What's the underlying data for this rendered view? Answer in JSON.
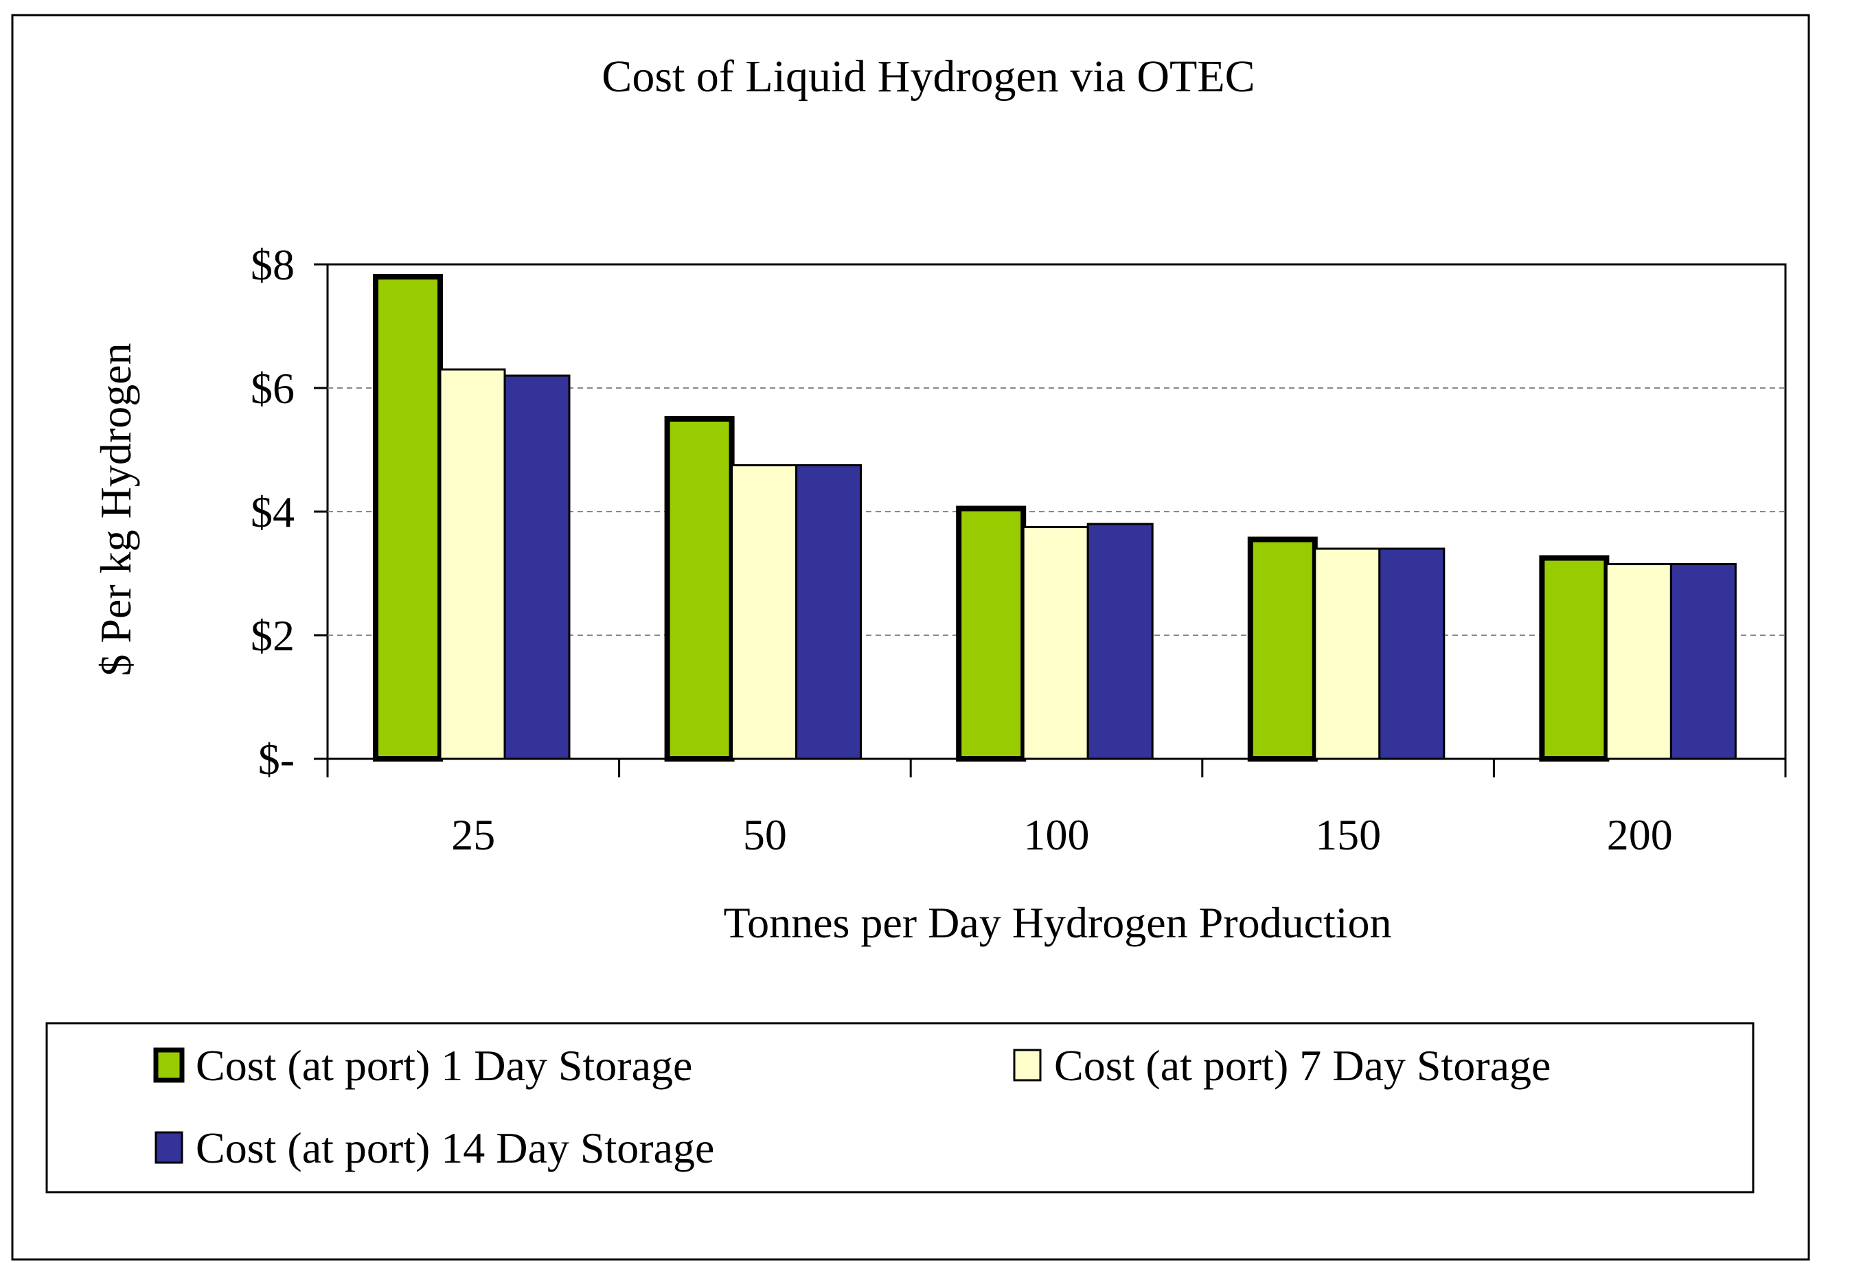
{
  "chart_data": {
    "type": "bar",
    "title": "Cost of Liquid Hydrogen via OTEC",
    "xlabel": "Tonnes per Day Hydrogen Production",
    "ylabel": "$ Per kg Hydrogen",
    "categories": [
      "25",
      "50",
      "100",
      "150",
      "200"
    ],
    "series": [
      {
        "name": "Cost (at port) 1 Day Storage",
        "color": "#99cc00",
        "values": [
          7.8,
          5.5,
          4.05,
          3.55,
          3.25
        ]
      },
      {
        "name": "Cost (at port) 7 Day Storage",
        "color": "#ffffcc",
        "values": [
          6.3,
          4.75,
          3.75,
          3.4,
          3.15
        ]
      },
      {
        "name": "Cost (at port) 14 Day Storage",
        "color": "#333399",
        "values": [
          6.2,
          4.75,
          3.8,
          3.4,
          3.15
        ]
      }
    ],
    "ylim": [
      0,
      8
    ],
    "yticks": [
      {
        "value": 0,
        "label": "$-"
      },
      {
        "value": 2,
        "label": "$2"
      },
      {
        "value": 4,
        "label": "$4"
      },
      {
        "value": 6,
        "label": "$6"
      },
      {
        "value": 8,
        "label": "$8"
      }
    ],
    "grid": true,
    "legend_position": "bottom"
  }
}
